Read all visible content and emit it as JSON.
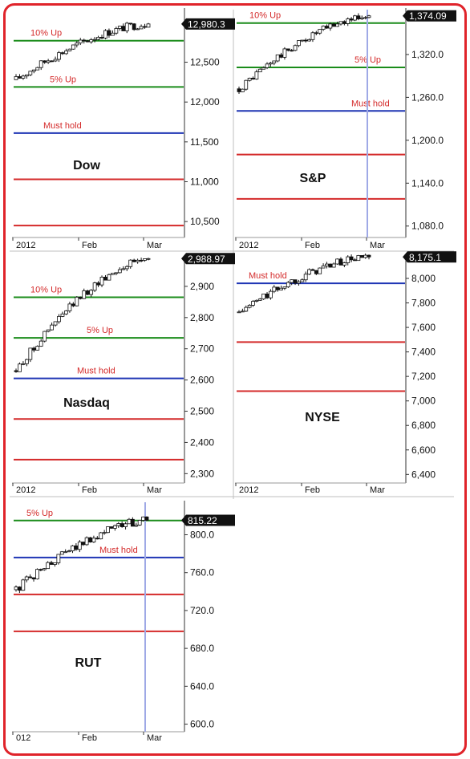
{
  "chart_data": [
    {
      "type": "candlestick",
      "title": "Dow",
      "x_ticks": [
        "2012",
        "Feb",
        "Mar"
      ],
      "y_ticks": [
        12500,
        12000,
        11500,
        11000,
        10500
      ],
      "y_tick_labels": [
        "12,500",
        "12,000",
        "11,500",
        "11,000",
        "10,500"
      ],
      "ylim": [
        10300,
        13180
      ],
      "last_value": 12980.3,
      "last_value_label": "12,980.3",
      "levels": [
        {
          "label": "10% Up",
          "value": 12770,
          "color": "#1a8c1a"
        },
        {
          "label": "5% Up",
          "value": 12190,
          "color": "#1a8c1a"
        },
        {
          "label": "Must hold",
          "value": 11610,
          "color": "#1f35b4"
        },
        {
          "label": "",
          "value": 11030,
          "color": "#d42a2a"
        },
        {
          "label": "",
          "value": 10450,
          "color": "#d42a2a"
        }
      ],
      "price_start": 12280,
      "marker_x": null
    },
    {
      "type": "candlestick",
      "title": "S&P",
      "x_ticks": [
        "2012",
        "Feb",
        "Mar"
      ],
      "y_ticks": [
        1320,
        1260,
        1200,
        1140,
        1080
      ],
      "y_tick_labels": [
        "1,320.0",
        "1,260.0",
        "1,200.0",
        "1,140.0",
        "1,080.0"
      ],
      "ylim": [
        1064,
        1385
      ],
      "last_value": 1374.09,
      "last_value_label": "1,374.09",
      "levels": [
        {
          "label": "10% Up",
          "value": 1364,
          "color": "#1a8c1a"
        },
        {
          "label": "5% Up",
          "value": 1302,
          "color": "#1a8c1a"
        },
        {
          "label": "Must hold",
          "value": 1241,
          "color": "#1f35b4"
        },
        {
          "label": "",
          "value": 1180,
          "color": "#d42a2a"
        },
        {
          "label": "",
          "value": 1118,
          "color": "#d42a2a"
        }
      ],
      "price_start": 1272,
      "marker_x": "Mar"
    },
    {
      "type": "candlestick",
      "title": "Nasdaq",
      "x_ticks": [
        "2012",
        "Feb",
        "Mar"
      ],
      "y_ticks": [
        2900,
        2800,
        2700,
        2600,
        2500,
        2400,
        2300
      ],
      "y_tick_labels": [
        "2,900",
        "2,800",
        "2,700",
        "2,600",
        "2,500",
        "2,400",
        "2,300"
      ],
      "ylim": [
        2270,
        3000
      ],
      "last_value": 2988.97,
      "last_value_label": "2,988.97",
      "levels": [
        {
          "label": "10% Up",
          "value": 2865,
          "color": "#1a8c1a"
        },
        {
          "label": "5% Up",
          "value": 2735,
          "color": "#1a8c1a"
        },
        {
          "label": "Must hold",
          "value": 2605,
          "color": "#1f35b4"
        },
        {
          "label": "",
          "value": 2475,
          "color": "#d42a2a"
        },
        {
          "label": "",
          "value": 2345,
          "color": "#d42a2a"
        }
      ],
      "price_start": 2630,
      "marker_x": null
    },
    {
      "type": "candlestick",
      "title": "NYSE",
      "x_ticks": [
        "2012",
        "Feb",
        "Mar"
      ],
      "y_ticks": [
        8000,
        7800,
        7600,
        7400,
        7200,
        7000,
        6800,
        6600,
        6400
      ],
      "y_tick_labels": [
        "8,000",
        "7,800",
        "7,600",
        "7,400",
        "7,200",
        "7,000",
        "6,800",
        "6,600",
        "6,400"
      ],
      "ylim": [
        6330,
        8190
      ],
      "last_value": 8175.1,
      "last_value_label": "8,175.1",
      "levels": [
        {
          "label": "Must hold",
          "value": 7960,
          "color": "#1f35b4"
        },
        {
          "label": "",
          "value": 7480,
          "color": "#d42a2a"
        },
        {
          "label": "",
          "value": 7080,
          "color": "#d42a2a"
        }
      ],
      "price_start": 7720,
      "marker_x": null
    },
    {
      "type": "candlestick",
      "title": "RUT",
      "x_ticks": [
        "012",
        "Feb",
        "Mar"
      ],
      "y_ticks": [
        800,
        760,
        720,
        680,
        640,
        600
      ],
      "y_tick_labels": [
        "800.0",
        "760.0",
        "720.0",
        "680.0",
        "640.0",
        "600.0"
      ],
      "ylim": [
        592,
        836
      ],
      "last_value": 815.22,
      "last_value_label": "815.22",
      "levels": [
        {
          "label": "5% Up",
          "value": 815,
          "color": "#1a8c1a"
        },
        {
          "label": "Must hold",
          "value": 776,
          "color": "#1f35b4"
        },
        {
          "label": "",
          "value": 737,
          "color": "#d42a2a"
        },
        {
          "label": "",
          "value": 698,
          "color": "#d42a2a"
        }
      ],
      "price_start": 742,
      "marker_x": "Mar"
    }
  ],
  "colors": {
    "frame": "#e0232a",
    "axis": "#333333",
    "separator": "#bfbfbf",
    "marker": "#9fa9e6",
    "badge": "#111111"
  }
}
